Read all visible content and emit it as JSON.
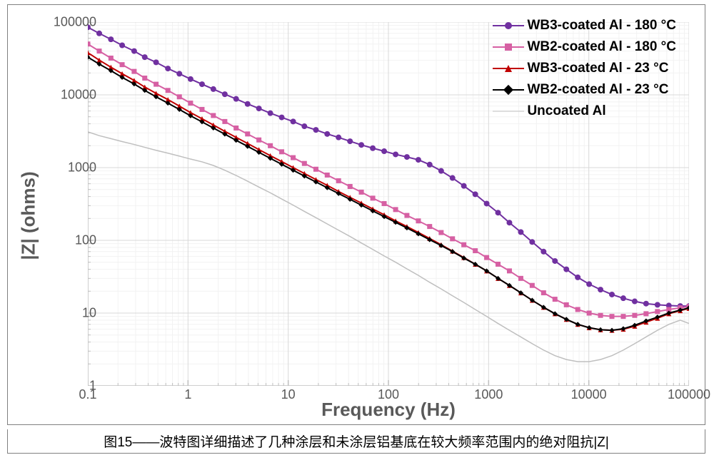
{
  "caption": "图15——波特图详细描述了几种涂层和未涂层铝基底在较大频率范围内的绝对阻抗|Z|",
  "chart": {
    "type": "line",
    "xlabel": "Frequency (Hz)",
    "ylabel": "|Z| (ohms)",
    "label_fontsize": 26,
    "tick_fontsize": 18,
    "label_color": "#595959",
    "background_color": "#ffffff",
    "border_color": "#808080",
    "xscale": "log",
    "yscale": "log",
    "xlim": [
      0.1,
      100000
    ],
    "ylim": [
      1,
      100000
    ],
    "xtick_labels": [
      "0.1",
      "1",
      "10",
      "100",
      "1000",
      "10000",
      "100000"
    ],
    "ytick_labels": [
      "1",
      "10",
      "100",
      "1000",
      "10000",
      "100000"
    ],
    "major_grid_color": "#d9d9d9",
    "minor_grid_color": "#f2f2f2",
    "axis_line_color": "#bfbfbf",
    "axis_line_width": 1.5,
    "legend": {
      "position": "top-right",
      "fontsize": 19,
      "items": [
        {
          "label": "WB3-coated Al - 180 °C",
          "color": "#7030a0",
          "marker": "circle",
          "line_width": 2
        },
        {
          "label": "WB2-coated Al - 180 °C",
          "color": "#d660a3",
          "marker": "square",
          "line_width": 2
        },
        {
          "label": "WB3-coated Al - 23 °C",
          "color": "#c00000",
          "marker": "triangle",
          "line_width": 2
        },
        {
          "label": "WB2-coated Al - 23 °C",
          "color": "#000000",
          "marker": "diamond",
          "line_width": 2
        },
        {
          "label": "Uncoated Al",
          "color": "#bfbfbf",
          "marker": "none",
          "line_width": 1.5
        }
      ]
    },
    "series": [
      {
        "name": "WB3-coated Al - 180 °C",
        "color": "#7030a0",
        "marker": "circle",
        "marker_size": 8,
        "line_width": 2,
        "x": [
          0.1,
          0.13,
          0.17,
          0.22,
          0.29,
          0.37,
          0.48,
          0.63,
          0.82,
          1.06,
          1.38,
          1.79,
          2.33,
          3.02,
          3.93,
          5.1,
          6.63,
          8.61,
          11.2,
          14.5,
          18.9,
          24.5,
          31.8,
          41.4,
          53.7,
          69.8,
          90.7,
          118,
          153,
          199,
          258,
          336,
          436,
          566,
          736,
          956,
          1242,
          1613,
          2096,
          2722,
          3537,
          4595,
          5969,
          7755,
          10075,
          13089,
          17004,
          22090,
          28700,
          37280,
          48440,
          62930,
          81760,
          100000
        ],
        "y": [
          85000,
          70000,
          58000,
          48000,
          40000,
          33000,
          28000,
          23000,
          19500,
          16500,
          14000,
          12000,
          10200,
          8800,
          7500,
          6500,
          5600,
          4900,
          4300,
          3700,
          3300,
          2900,
          2600,
          2300,
          2050,
          1850,
          1680,
          1520,
          1400,
          1280,
          1100,
          900,
          720,
          560,
          430,
          320,
          240,
          175,
          130,
          95,
          70,
          52,
          40,
          31,
          25,
          21,
          18,
          16,
          14.5,
          13.5,
          13,
          12.7,
          12.5,
          12.5
        ]
      },
      {
        "name": "WB2-coated Al - 180 °C",
        "color": "#d660a3",
        "marker": "square",
        "marker_size": 7,
        "line_width": 2,
        "x": [
          0.1,
          0.13,
          0.17,
          0.22,
          0.29,
          0.37,
          0.48,
          0.63,
          0.82,
          1.06,
          1.38,
          1.79,
          2.33,
          3.02,
          3.93,
          5.1,
          6.63,
          8.61,
          11.2,
          14.5,
          18.9,
          24.5,
          31.8,
          41.4,
          53.7,
          69.8,
          90.7,
          118,
          153,
          199,
          258,
          336,
          436,
          566,
          736,
          956,
          1242,
          1613,
          2096,
          2722,
          3537,
          4595,
          5969,
          7755,
          10075,
          13089,
          17004,
          22090,
          28700,
          37280,
          48440,
          62930,
          81760,
          100000
        ],
        "y": [
          50000,
          40000,
          32000,
          26000,
          21000,
          17000,
          14000,
          11500,
          9400,
          7700,
          6300,
          5200,
          4300,
          3500,
          2900,
          2400,
          2000,
          1650,
          1370,
          1140,
          950,
          790,
          660,
          550,
          460,
          380,
          320,
          265,
          220,
          185,
          155,
          128,
          105,
          87,
          72,
          58,
          47,
          38,
          30,
          24,
          19,
          15.5,
          13,
          11.2,
          10,
          9.3,
          9,
          9,
          9.3,
          9.8,
          10.5,
          11.2,
          11.8,
          12.3
        ]
      },
      {
        "name": "WB3-coated Al - 23 °C",
        "color": "#c00000",
        "marker": "triangle",
        "marker_size": 7,
        "line_width": 2,
        "x": [
          0.1,
          0.13,
          0.17,
          0.22,
          0.29,
          0.37,
          0.48,
          0.63,
          0.82,
          1.06,
          1.38,
          1.79,
          2.33,
          3.02,
          3.93,
          5.1,
          6.63,
          8.61,
          11.2,
          14.5,
          18.9,
          24.5,
          31.8,
          41.4,
          53.7,
          69.8,
          90.7,
          118,
          153,
          199,
          258,
          336,
          436,
          566,
          736,
          956,
          1242,
          1613,
          2096,
          2722,
          3537,
          4595,
          5969,
          7755,
          10075,
          13089,
          17004,
          22090,
          28700,
          37280,
          48440,
          62930,
          81760,
          100000
        ],
        "y": [
          38000,
          30000,
          24000,
          19500,
          15800,
          12800,
          10500,
          8600,
          7000,
          5700,
          4700,
          3850,
          3150,
          2600,
          2150,
          1770,
          1460,
          1210,
          1000,
          830,
          685,
          570,
          470,
          390,
          325,
          270,
          225,
          185,
          155,
          128,
          106,
          87,
          71,
          58,
          47,
          38,
          30,
          24,
          19,
          15,
          12,
          9.8,
          8.2,
          7,
          6.3,
          5.9,
          5.8,
          6,
          6.6,
          7.5,
          8.5,
          9.8,
          10.8,
          11.6
        ]
      },
      {
        "name": "WB2-coated Al - 23 °C",
        "color": "#000000",
        "marker": "diamond",
        "marker_size": 7,
        "line_width": 2,
        "x": [
          0.1,
          0.13,
          0.17,
          0.22,
          0.29,
          0.37,
          0.48,
          0.63,
          0.82,
          1.06,
          1.38,
          1.79,
          2.33,
          3.02,
          3.93,
          5.1,
          6.63,
          8.61,
          11.2,
          14.5,
          18.9,
          24.5,
          31.8,
          41.4,
          53.7,
          69.8,
          90.7,
          118,
          153,
          199,
          258,
          336,
          436,
          566,
          736,
          956,
          1242,
          1613,
          2096,
          2722,
          3537,
          4595,
          5969,
          7755,
          10075,
          13089,
          17004,
          22090,
          28700,
          37280,
          48440,
          62930,
          81760,
          100000
        ],
        "y": [
          33000,
          26500,
          21500,
          17400,
          14100,
          11500,
          9400,
          7700,
          6300,
          5150,
          4250,
          3500,
          2880,
          2370,
          1960,
          1620,
          1340,
          1110,
          920,
          765,
          635,
          528,
          440,
          366,
          305,
          254,
          212,
          177,
          148,
          123,
          102,
          85,
          70,
          57,
          47,
          38,
          30,
          24,
          19,
          15,
          12,
          9.8,
          8.2,
          7,
          6.3,
          5.9,
          5.8,
          6.1,
          6.8,
          7.8,
          8.8,
          10,
          11,
          11.8
        ]
      },
      {
        "name": "Uncoated Al",
        "color": "#bfbfbf",
        "marker": "none",
        "marker_size": 0,
        "line_width": 1.5,
        "x": [
          0.1,
          0.13,
          0.17,
          0.22,
          0.29,
          0.37,
          0.48,
          0.63,
          0.82,
          1.06,
          1.38,
          1.79,
          2.33,
          3.02,
          3.93,
          5.1,
          6.63,
          8.61,
          11.2,
          14.5,
          18.9,
          24.5,
          31.8,
          41.4,
          53.7,
          69.8,
          90.7,
          118,
          153,
          199,
          258,
          336,
          436,
          566,
          736,
          956,
          1242,
          1613,
          2096,
          2722,
          3537,
          4595,
          5969,
          7755,
          10075,
          13089,
          17004,
          22090,
          28700,
          37280,
          48440,
          62930,
          81760,
          100000
        ],
        "y": [
          3100,
          2750,
          2500,
          2280,
          2080,
          1900,
          1730,
          1580,
          1440,
          1310,
          1200,
          1070,
          920,
          780,
          650,
          540,
          450,
          370,
          305,
          250,
          205,
          168,
          138,
          113,
          92,
          75,
          61,
          50,
          40.5,
          33,
          26.5,
          21.5,
          17.3,
          14,
          11.2,
          9,
          7.2,
          5.8,
          4.7,
          3.8,
          3.1,
          2.6,
          2.3,
          2.15,
          2.15,
          2.3,
          2.6,
          3.1,
          3.8,
          4.7,
          5.8,
          7,
          8,
          7.2
        ]
      }
    ]
  }
}
